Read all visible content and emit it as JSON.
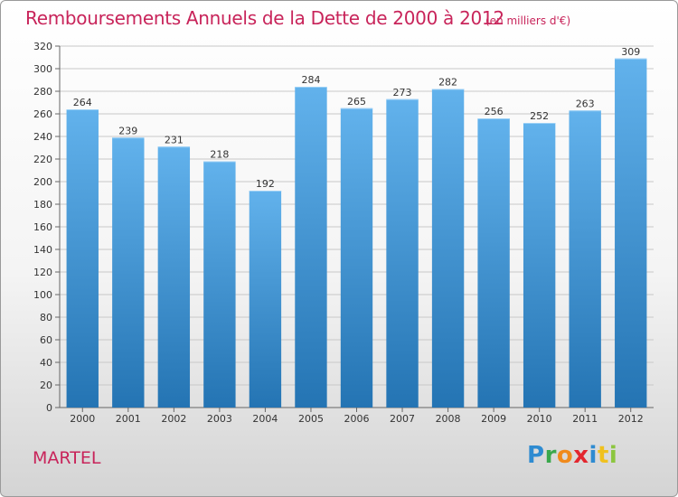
{
  "header": {
    "title": "Remboursements Annuels de la Dette de 2000 à 2012",
    "subtitle": "(en milliers d'€)"
  },
  "footer": {
    "town": "MARTEL",
    "logo_letters": [
      "P",
      "r",
      "o",
      "x",
      "i",
      "t",
      "i"
    ]
  },
  "colors": {
    "title": "#c8245a",
    "bar_top": "#62b2ec",
    "bar_bottom": "#2474b3"
  },
  "chart_data": {
    "type": "bar",
    "title": "Remboursements Annuels de la Dette de 2000 à 2012",
    "subtitle": "(en milliers d'€)",
    "xlabel": "",
    "ylabel": "",
    "categories": [
      "2000",
      "2001",
      "2002",
      "2003",
      "2004",
      "2005",
      "2006",
      "2007",
      "2008",
      "2009",
      "2010",
      "2011",
      "2012"
    ],
    "values": [
      264,
      239,
      231,
      218,
      192,
      284,
      265,
      273,
      282,
      256,
      252,
      263,
      309
    ],
    "ylim": [
      0,
      320
    ],
    "yticks": [
      0,
      20,
      40,
      60,
      80,
      100,
      120,
      140,
      160,
      180,
      200,
      220,
      240,
      260,
      280,
      300,
      320
    ],
    "grid": true,
    "legend": "none"
  }
}
